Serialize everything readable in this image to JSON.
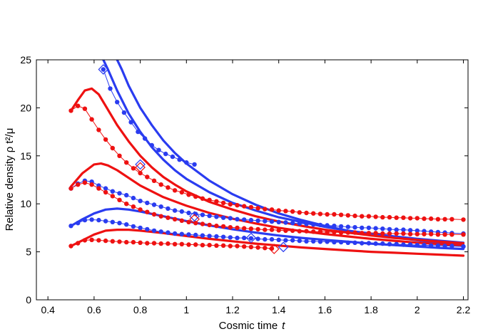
{
  "chart_data": {
    "type": "line",
    "title": "",
    "xlabel": "Cosmic time",
    "xlabel_var": "t",
    "ylabel": "Relative density ρ t²/μ",
    "xlim": [
      0.35,
      2.22
    ],
    "ylim": [
      0,
      25
    ],
    "xticks": [
      0.4,
      0.6,
      0.8,
      1,
      1.2,
      1.4,
      1.6,
      1.8,
      2,
      2.2
    ],
    "xtick_labels": [
      "0.4",
      "0.6",
      "0.8",
      "1",
      "1.2",
      "1.4",
      "1.6",
      "1.8",
      "2",
      "2.2"
    ],
    "yticks": [
      0,
      5,
      10,
      15,
      20,
      25
    ],
    "ytick_labels": [
      "0",
      "5",
      "10",
      "15",
      "20",
      "25"
    ],
    "grid": false,
    "colors": {
      "blue": "#2a3cf0",
      "red": "#ee1111"
    },
    "series": [
      {
        "name": "blue-solid-1",
        "color": "blue",
        "style": "thick",
        "x": [
          0.63,
          0.66,
          0.7,
          0.75,
          0.8,
          0.85,
          0.9,
          0.95,
          1.0,
          1.1,
          1.2,
          1.3,
          1.4,
          1.5,
          1.6,
          1.7,
          1.8,
          1.9,
          2.0,
          2.1,
          2.2
        ],
        "y": [
          25.5,
          24.0,
          21.8,
          19.4,
          17.5,
          15.9,
          14.6,
          13.5,
          12.6,
          11.2,
          10.1,
          9.3,
          8.6,
          8.1,
          7.6,
          7.2,
          6.9,
          6.6,
          6.35,
          6.15,
          5.95
        ]
      },
      {
        "name": "blue-solid-2",
        "color": "blue",
        "style": "thick",
        "x": [
          0.69,
          0.72,
          0.75,
          0.8,
          0.85,
          0.9,
          0.95,
          1.0,
          1.1,
          1.2,
          1.3,
          1.4,
          1.5,
          1.6,
          1.7,
          1.8,
          1.9,
          2.0,
          2.1,
          2.2
        ],
        "y": [
          25.5,
          24.0,
          22.3,
          20.0,
          18.2,
          16.6,
          15.3,
          14.2,
          12.4,
          11.0,
          9.9,
          9.0,
          8.3,
          7.7,
          7.2,
          6.8,
          6.5,
          6.2,
          5.95,
          5.75
        ]
      },
      {
        "name": "blue-solid-3",
        "color": "blue",
        "style": "thick",
        "x": [
          0.5,
          0.55,
          0.6,
          0.65,
          0.7,
          0.75,
          0.8,
          0.9,
          1.0,
          1.1,
          1.2,
          1.3,
          1.4,
          1.5,
          1.6,
          1.7,
          1.8,
          1.9,
          2.0,
          2.1,
          2.2
        ],
        "y": [
          7.7,
          8.4,
          9.0,
          9.4,
          9.5,
          9.4,
          9.2,
          8.7,
          8.2,
          7.75,
          7.35,
          7.0,
          6.7,
          6.45,
          6.25,
          6.05,
          5.85,
          5.7,
          5.55,
          5.4,
          5.3
        ]
      },
      {
        "name": "red-solid-1",
        "color": "red",
        "style": "thick",
        "x": [
          0.5,
          0.53,
          0.56,
          0.59,
          0.62,
          0.65,
          0.7,
          0.75,
          0.8,
          0.85,
          0.9,
          0.95,
          1.0,
          1.1,
          1.2,
          1.3,
          1.4,
          1.5,
          1.6,
          1.7,
          1.8,
          1.9,
          2.0,
          2.1,
          2.2
        ],
        "y": [
          19.7,
          20.8,
          21.8,
          22.0,
          21.4,
          20.2,
          18.2,
          16.5,
          15.0,
          13.8,
          12.8,
          12.0,
          11.3,
          10.2,
          9.4,
          8.7,
          8.15,
          7.7,
          7.3,
          7.0,
          6.7,
          6.45,
          6.25,
          6.05,
          5.9
        ]
      },
      {
        "name": "red-solid-2",
        "color": "red",
        "style": "thick",
        "x": [
          0.5,
          0.55,
          0.6,
          0.63,
          0.66,
          0.7,
          0.75,
          0.8,
          0.9,
          1.0,
          1.1,
          1.2,
          1.3,
          1.4,
          1.5,
          1.6,
          1.7,
          1.8,
          1.9,
          2.0,
          2.1,
          2.2
        ],
        "y": [
          11.8,
          13.2,
          14.1,
          14.2,
          14.0,
          13.5,
          12.7,
          11.9,
          10.7,
          9.8,
          9.05,
          8.45,
          7.95,
          7.5,
          7.15,
          6.85,
          6.6,
          6.35,
          6.15,
          5.95,
          5.8,
          5.65
        ]
      },
      {
        "name": "red-solid-3",
        "color": "red",
        "style": "thick",
        "x": [
          0.5,
          0.55,
          0.6,
          0.65,
          0.7,
          0.75,
          0.8,
          0.9,
          1.0,
          1.1,
          1.2,
          1.3,
          1.4,
          1.5,
          1.6,
          1.7,
          1.8,
          1.9,
          2.0,
          2.1,
          2.2
        ],
        "y": [
          5.6,
          6.2,
          6.8,
          7.2,
          7.3,
          7.3,
          7.2,
          6.95,
          6.65,
          6.35,
          6.1,
          5.85,
          5.65,
          5.45,
          5.3,
          5.15,
          5.0,
          4.9,
          4.8,
          4.7,
          4.6
        ]
      },
      {
        "name": "blue-dotted-1",
        "color": "blue",
        "style": "dotted",
        "x": [
          0.64,
          0.67,
          0.7,
          0.73,
          0.76,
          0.79,
          0.82,
          0.85,
          0.88,
          0.91,
          0.94,
          0.97,
          1.0,
          1.035
        ],
        "y": [
          24.0,
          22.0,
          20.6,
          19.5,
          18.5,
          17.5,
          16.8,
          16.1,
          15.6,
          15.2,
          14.9,
          14.6,
          14.3,
          14.1
        ]
      },
      {
        "name": "blue-dotted-2",
        "color": "blue",
        "style": "dotted",
        "x": [
          0.5,
          0.53,
          0.56,
          0.59,
          0.62,
          0.65,
          0.68,
          0.71,
          0.74,
          0.77,
          0.8,
          0.83,
          0.86,
          0.89,
          0.92,
          0.95,
          0.98,
          1.01,
          1.04,
          1.07,
          1.1,
          1.13,
          1.16,
          1.19,
          1.22,
          1.25,
          1.28,
          1.31,
          1.34,
          1.37,
          1.4,
          1.43,
          1.46,
          1.49,
          1.52,
          1.55,
          1.58,
          1.61,
          1.64,
          1.67,
          1.7,
          1.73,
          1.76,
          1.79,
          1.82,
          1.85,
          1.88,
          1.91,
          1.94,
          1.97,
          2.0,
          2.03,
          2.06,
          2.09,
          2.12,
          2.15,
          2.2
        ],
        "y": [
          11.6,
          12.1,
          12.4,
          12.3,
          11.9,
          11.6,
          11.3,
          11.1,
          10.9,
          10.6,
          10.3,
          10.1,
          9.9,
          9.7,
          9.5,
          9.3,
          9.2,
          9.05,
          8.95,
          8.85,
          8.75,
          8.65,
          8.55,
          8.5,
          8.4,
          8.35,
          8.3,
          8.25,
          8.2,
          8.15,
          8.1,
          8.05,
          8.0,
          7.95,
          7.9,
          7.85,
          7.8,
          7.75,
          7.7,
          7.65,
          7.6,
          7.55,
          7.5,
          7.5,
          7.45,
          7.4,
          7.35,
          7.3,
          7.3,
          7.25,
          7.2,
          7.15,
          7.1,
          7.05,
          7.0,
          6.95,
          6.9
        ]
      },
      {
        "name": "blue-dotted-3",
        "color": "blue",
        "style": "dotted",
        "x": [
          0.5,
          0.53,
          0.56,
          0.59,
          0.62,
          0.65,
          0.68,
          0.71,
          0.74,
          0.77,
          0.8,
          0.83,
          0.86,
          0.89,
          0.92,
          0.95,
          0.98,
          1.01,
          1.04,
          1.07,
          1.1,
          1.13,
          1.16,
          1.19,
          1.22,
          1.25,
          1.28,
          1.31,
          1.34,
          1.37,
          1.4,
          1.43,
          1.46,
          1.49,
          1.52,
          1.55,
          1.58,
          1.61,
          1.64,
          1.67,
          1.7,
          1.73,
          1.76,
          1.79,
          1.82,
          1.85,
          1.88,
          1.91,
          1.94,
          1.97,
          2.0,
          2.03,
          2.06,
          2.09,
          2.12,
          2.15,
          2.2
        ],
        "y": [
          7.7,
          8.0,
          8.3,
          8.35,
          8.3,
          8.2,
          8.1,
          8.0,
          7.85,
          7.65,
          7.5,
          7.35,
          7.2,
          7.1,
          7.0,
          6.9,
          6.85,
          6.8,
          6.75,
          6.7,
          6.65,
          6.6,
          6.55,
          6.5,
          6.45,
          6.45,
          6.4,
          6.35,
          6.3,
          6.3,
          6.25,
          6.2,
          6.2,
          6.15,
          6.1,
          6.1,
          6.05,
          6.05,
          6.0,
          6.0,
          5.95,
          5.95,
          5.9,
          5.9,
          5.85,
          5.85,
          5.8,
          5.8,
          5.75,
          5.75,
          5.7,
          5.7,
          5.65,
          5.65,
          5.6,
          5.6,
          5.55
        ]
      },
      {
        "name": "red-dotted-1",
        "color": "red",
        "style": "dotted",
        "x": [
          0.5,
          0.53,
          0.56,
          0.59,
          0.62,
          0.65,
          0.68,
          0.71,
          0.74,
          0.77,
          0.8,
          0.83,
          0.86,
          0.89,
          0.92,
          0.95,
          0.98,
          1.01,
          1.04,
          1.07,
          1.1,
          1.13,
          1.16,
          1.19,
          1.22,
          1.25,
          1.28,
          1.31,
          1.34,
          1.37,
          1.4,
          1.43,
          1.46,
          1.49,
          1.52,
          1.55,
          1.58,
          1.61,
          1.64,
          1.67,
          1.7,
          1.73,
          1.76,
          1.79,
          1.82,
          1.85,
          1.88,
          1.91,
          1.94,
          1.97,
          2.0,
          2.03,
          2.06,
          2.09,
          2.12,
          2.15,
          2.2
        ],
        "y": [
          19.7,
          20.2,
          19.9,
          18.8,
          17.7,
          16.7,
          15.8,
          15.0,
          14.3,
          13.7,
          13.2,
          12.8,
          12.4,
          12.0,
          11.7,
          11.4,
          11.2,
          10.95,
          10.75,
          10.55,
          10.4,
          10.25,
          10.1,
          9.95,
          9.85,
          9.75,
          9.65,
          9.55,
          9.45,
          9.4,
          9.3,
          9.25,
          9.2,
          9.1,
          9.05,
          9.0,
          8.95,
          8.9,
          8.9,
          8.85,
          8.8,
          8.75,
          8.7,
          8.7,
          8.65,
          8.6,
          8.6,
          8.55,
          8.55,
          8.5,
          8.5,
          8.45,
          8.45,
          8.4,
          8.4,
          8.4,
          8.35
        ]
      },
      {
        "name": "red-dotted-2",
        "color": "red",
        "style": "dotted",
        "x": [
          0.5,
          0.53,
          0.56,
          0.59,
          0.62,
          0.65,
          0.68,
          0.71,
          0.74,
          0.77,
          0.8,
          0.83,
          0.86,
          0.89,
          0.92,
          0.95,
          0.98,
          1.01,
          1.04,
          1.07,
          1.1,
          1.13,
          1.16,
          1.19,
          1.22,
          1.25,
          1.28,
          1.31,
          1.34,
          1.37,
          1.4,
          1.43,
          1.46,
          1.49,
          1.52,
          1.55,
          1.58,
          1.61,
          1.64,
          1.67,
          1.7,
          1.73,
          1.76,
          1.79,
          1.82,
          1.85,
          1.88,
          1.91,
          1.94,
          1.97,
          2.0,
          2.03,
          2.06,
          2.09,
          2.12,
          2.15,
          2.2
        ],
        "y": [
          11.6,
          12.0,
          12.2,
          12.0,
          11.6,
          11.2,
          10.8,
          10.4,
          10.0,
          9.7,
          9.4,
          9.15,
          8.9,
          8.7,
          8.55,
          8.4,
          8.25,
          8.1,
          8.0,
          7.9,
          7.8,
          7.7,
          7.65,
          7.55,
          7.5,
          7.45,
          7.4,
          7.35,
          7.3,
          7.3,
          7.25,
          7.2,
          7.2,
          7.15,
          7.15,
          7.1,
          7.1,
          7.05,
          7.05,
          7.0,
          7.0,
          7.0,
          6.95,
          6.95,
          6.95,
          6.9,
          6.9,
          6.9,
          6.9,
          6.85,
          6.85,
          6.85,
          6.85,
          6.8,
          6.8,
          6.8,
          6.8
        ]
      },
      {
        "name": "red-dotted-3",
        "color": "red",
        "style": "dotted",
        "x": [
          0.5,
          0.53,
          0.56,
          0.59,
          0.62,
          0.65,
          0.68,
          0.71,
          0.74,
          0.77,
          0.8,
          0.83,
          0.86,
          0.89,
          0.92,
          0.95,
          0.98,
          1.01,
          1.04,
          1.07,
          1.1,
          1.13,
          1.16,
          1.19,
          1.22,
          1.25,
          1.28,
          1.31,
          1.34,
          1.37
        ],
        "y": [
          5.6,
          5.9,
          6.2,
          6.25,
          6.2,
          6.15,
          6.1,
          6.05,
          6.0,
          6.0,
          5.95,
          5.9,
          5.9,
          5.85,
          5.85,
          5.8,
          5.8,
          5.75,
          5.75,
          5.7,
          5.7,
          5.65,
          5.65,
          5.6,
          5.6,
          5.55,
          5.5,
          5.45,
          5.4,
          5.35
        ]
      }
    ],
    "markers": [
      {
        "color": "blue",
        "x": 0.64,
        "y": 24.0
      },
      {
        "color": "blue",
        "x": 0.8,
        "y": 14.1
      },
      {
        "color": "red",
        "x": 0.8,
        "y": 13.8
      },
      {
        "color": "blue",
        "x": 1.035,
        "y": 8.7
      },
      {
        "color": "red",
        "x": 1.035,
        "y": 8.4
      },
      {
        "color": "blue",
        "x": 1.28,
        "y": 6.45
      },
      {
        "color": "blue",
        "x": 1.42,
        "y": 5.5
      },
      {
        "color": "red",
        "x": 1.38,
        "y": 5.3
      }
    ]
  }
}
